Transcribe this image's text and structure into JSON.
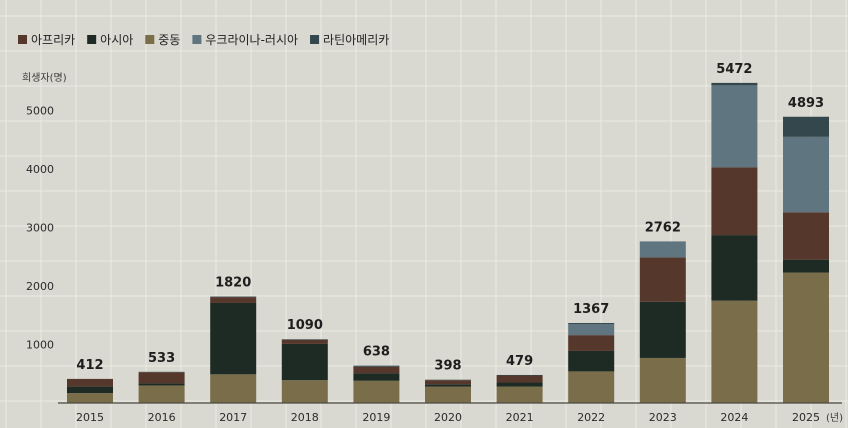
{
  "chart_data": {
    "type": "bar",
    "stacked": true,
    "categories": [
      "2015",
      "2016",
      "2017",
      "2018",
      "2019",
      "2020",
      "2021",
      "2022",
      "2023",
      "2024",
      "2025"
    ],
    "x_unit": "(년)",
    "ylabel": "희생자(명)",
    "ylim": [
      0,
      5500
    ],
    "yticks": [
      1000,
      2000,
      3000,
      4000,
      5000
    ],
    "grid": true,
    "legend_position": "top-left",
    "totals": [
      412,
      533,
      1820,
      1090,
      638,
      398,
      479,
      1367,
      2762,
      5472,
      4893
    ],
    "series": [
      {
        "name": "중동",
        "color": "#7a6e4a",
        "values": [
          170,
          300,
          490,
          390,
          380,
          280,
          280,
          540,
          770,
          1750,
          2230
        ]
      },
      {
        "name": "아시아",
        "color": "#1e2b25",
        "values": [
          110,
          35,
          1220,
          620,
          130,
          40,
          70,
          350,
          960,
          1120,
          220
        ]
      },
      {
        "name": "아프리카",
        "color": "#55372c",
        "values": [
          130,
          190,
          100,
          70,
          110,
          70,
          120,
          270,
          760,
          1160,
          810
        ]
      },
      {
        "name": "우크라이나-러시아",
        "color": "#5f7580",
        "values": [
          0,
          0,
          0,
          0,
          0,
          0,
          0,
          190,
          270,
          1400,
          1290
        ]
      },
      {
        "name": "라틴아메리카",
        "color": "#34474c",
        "values": [
          2,
          8,
          10,
          10,
          18,
          8,
          9,
          17,
          2,
          42,
          343
        ]
      }
    ]
  }
}
